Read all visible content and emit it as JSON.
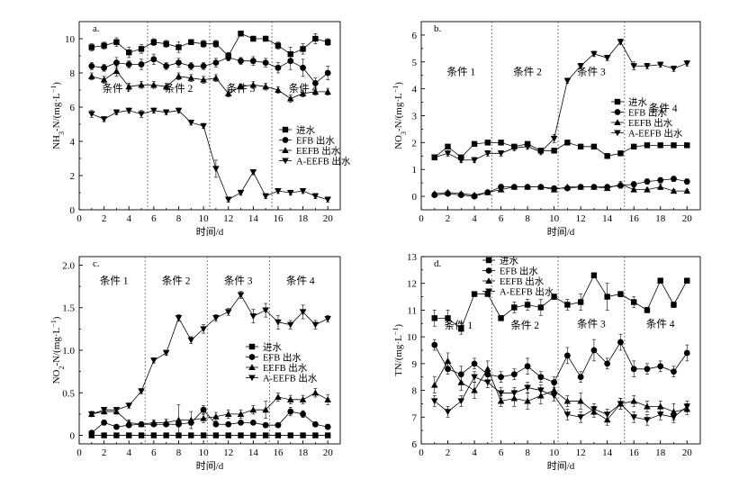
{
  "chart_data": [
    {
      "type": "line",
      "panel_label": "a.",
      "ylabel": "NH3-N/(mg·L⁻¹)",
      "ylabel_parts": [
        "NH",
        "3",
        "-N/(mg·L",
        "−1",
        ")"
      ],
      "xlabel": "时间/d",
      "xlim": [
        0,
        21
      ],
      "ylim": [
        0,
        11
      ],
      "xticks": [
        0,
        2,
        4,
        6,
        8,
        10,
        12,
        14,
        16,
        18,
        20
      ],
      "yticks": [
        0,
        2,
        4,
        6,
        8,
        10
      ],
      "dividers": [
        5.5,
        10.5,
        15.5
      ],
      "conditions": [
        {
          "label": "条件 1",
          "x": 3.0,
          "y": 6.9
        },
        {
          "label": "条件 2",
          "x": 8.0,
          "y": 6.9
        },
        {
          "label": "条件 3",
          "x": 13.0,
          "y": 6.9
        },
        {
          "label": "条件 4",
          "x": 18.0,
          "y": 6.9
        }
      ],
      "legend_position": "right-middle",
      "x": [
        1,
        2,
        3,
        4,
        5,
        6,
        7,
        8,
        9,
        10,
        11,
        12,
        13,
        14,
        15,
        16,
        17,
        18,
        19,
        20
      ],
      "series": [
        {
          "name": "进水",
          "marker": "square",
          "values": [
            9.5,
            9.6,
            9.8,
            9.2,
            9.4,
            9.8,
            9.7,
            9.5,
            9.8,
            9.7,
            9.7,
            9.0,
            10.3,
            10.0,
            10.0,
            9.6,
            9.1,
            9.4,
            10.0,
            9.8
          ],
          "errors": [
            0.2,
            0.2,
            0.25,
            0.3,
            0.25,
            0.2,
            0.2,
            0.3,
            0.15,
            0.2,
            0.2,
            0.2,
            0.15,
            0.15,
            0.15,
            0.2,
            0.4,
            0.3,
            0.3,
            0.2
          ]
        },
        {
          "name": "EFB 出水",
          "marker": "circle",
          "values": [
            8.4,
            8.3,
            8.6,
            8.5,
            8.5,
            8.8,
            8.4,
            8.6,
            8.4,
            8.4,
            8.6,
            8.9,
            8.7,
            8.7,
            8.6,
            8.3,
            8.7,
            8.3,
            7.4,
            8.0
          ],
          "errors": [
            0.2,
            0.2,
            0.3,
            0.2,
            0.3,
            0.3,
            0.2,
            0.25,
            0.2,
            0.2,
            0.25,
            0.2,
            0.2,
            0.25,
            0.25,
            0.3,
            0.5,
            0.5,
            0.3,
            0.4
          ]
        },
        {
          "name": "EEFB 出水",
          "marker": "triangle-up",
          "values": [
            7.8,
            7.6,
            8.1,
            7.2,
            7.3,
            7.3,
            7.2,
            7.8,
            7.7,
            7.6,
            7.7,
            6.8,
            7.2,
            7.3,
            7.2,
            7.0,
            6.5,
            6.8,
            6.9,
            6.9
          ],
          "errors": [
            0.2,
            0.2,
            0.3,
            0.2,
            0.2,
            0.2,
            0.2,
            0.2,
            0.2,
            0.2,
            0.2,
            0.2,
            0.15,
            0.2,
            0.2,
            0.2,
            0.2,
            0.2,
            0.2,
            0.2
          ]
        },
        {
          "name": "A-EEFB 出水",
          "marker": "triangle-down",
          "values": [
            5.6,
            5.3,
            5.7,
            5.8,
            5.6,
            5.8,
            5.7,
            5.8,
            5.1,
            4.9,
            2.4,
            0.6,
            1.0,
            2.2,
            0.8,
            1.1,
            1.0,
            1.1,
            0.8,
            0.6
          ],
          "errors": [
            0.2,
            0.15,
            0.15,
            0.15,
            0.2,
            0.15,
            0.15,
            0.15,
            0.15,
            0.15,
            0.5,
            0.15,
            0.15,
            0.15,
            0.15,
            0.15,
            0.15,
            0.15,
            0.15,
            0.15
          ]
        }
      ]
    },
    {
      "type": "line",
      "panel_label": "b.",
      "ylabel": "NO3-N/(mg·L⁻¹)",
      "ylabel_parts": [
        "NO",
        "3",
        "-N/(mg·L",
        "−1",
        ")"
      ],
      "xlabel": "时间/d",
      "xlim": [
        0,
        21
      ],
      "ylim": [
        -0.5,
        6.5
      ],
      "xticks": [
        0,
        2,
        4,
        6,
        8,
        10,
        12,
        14,
        16,
        18,
        20
      ],
      "yticks": [
        0,
        1,
        2,
        3,
        4,
        5,
        6
      ],
      "dividers": [
        5.3,
        10.3,
        15.3
      ],
      "conditions": [
        {
          "label": "条件 1",
          "x": 3.0,
          "y": 4.5
        },
        {
          "label": "条件 2",
          "x": 8.0,
          "y": 4.5
        },
        {
          "label": "条件 3",
          "x": 12.8,
          "y": 4.5
        },
        {
          "label": "条件 4",
          "x": 18.2,
          "y": 3.15
        }
      ],
      "legend_position": "right-middle",
      "x": [
        1,
        2,
        3,
        4,
        5,
        6,
        7,
        8,
        9,
        10,
        11,
        12,
        13,
        14,
        15,
        16,
        17,
        18,
        19,
        20
      ],
      "series": [
        {
          "name": "进水",
          "marker": "square",
          "values": [
            1.45,
            1.85,
            1.45,
            1.95,
            2.0,
            2.0,
            1.85,
            1.95,
            1.7,
            1.7,
            2.0,
            1.85,
            1.85,
            1.5,
            1.6,
            1.85,
            1.9,
            1.9,
            1.9,
            1.9
          ],
          "errors": [
            0.05,
            0.05,
            0.05,
            0.05,
            0.05,
            0.05,
            0.05,
            0.05,
            0.05,
            0.05,
            0.05,
            0.05,
            0.05,
            0.05,
            0.05,
            0.05,
            0.05,
            0.05,
            0.05,
            0.05
          ]
        },
        {
          "name": "EFB 出水",
          "marker": "circle",
          "values": [
            0.05,
            0.1,
            0.05,
            0.0,
            0.15,
            0.35,
            0.35,
            0.35,
            0.35,
            0.3,
            0.3,
            0.35,
            0.35,
            0.35,
            0.4,
            0.45,
            0.55,
            0.6,
            0.65,
            0.55
          ],
          "errors": [
            0.05,
            0.05,
            0.05,
            0.05,
            0.05,
            0.1,
            0.05,
            0.05,
            0.05,
            0.05,
            0.05,
            0.05,
            0.05,
            0.05,
            0.1,
            0.1,
            0.1,
            0.1,
            0.1,
            0.1
          ]
        },
        {
          "name": "EEFB 出水",
          "marker": "triangle-up",
          "values": [
            0.1,
            0.15,
            0.1,
            0.05,
            0.15,
            0.25,
            0.35,
            0.35,
            0.35,
            0.25,
            0.35,
            0.35,
            0.35,
            0.3,
            0.45,
            0.25,
            0.25,
            0.35,
            0.2,
            0.2
          ],
          "errors": [
            0.05,
            0.05,
            0.05,
            0.05,
            0.05,
            0.05,
            0.05,
            0.05,
            0.05,
            0.05,
            0.05,
            0.05,
            0.05,
            0.05,
            0.1,
            0.05,
            0.05,
            0.1,
            0.05,
            0.05
          ]
        },
        {
          "name": "A-EEFB 出水",
          "marker": "triangle-down",
          "values": [
            1.45,
            1.6,
            1.35,
            1.35,
            1.6,
            1.6,
            1.8,
            1.85,
            1.65,
            2.15,
            4.3,
            4.85,
            5.3,
            5.15,
            5.75,
            4.85,
            4.85,
            4.9,
            4.75,
            4.95
          ],
          "errors": [
            0.1,
            0.1,
            0.1,
            0.1,
            0.1,
            0.1,
            0.1,
            0.1,
            0.1,
            0.15,
            0.1,
            0.1,
            0.1,
            0.1,
            0.1,
            0.15,
            0.1,
            0.1,
            0.1,
            0.1
          ]
        }
      ]
    },
    {
      "type": "line",
      "panel_label": "c.",
      "ylabel": "NO2-N/(mg·L⁻¹)",
      "ylabel_parts": [
        "NO",
        "2",
        "-N/(mg·L",
        "−1",
        ")"
      ],
      "xlabel": "时间/d",
      "xlim": [
        0,
        21
      ],
      "ylim": [
        -0.1,
        2.1
      ],
      "xticks": [
        0,
        2,
        4,
        6,
        8,
        10,
        12,
        14,
        16,
        18,
        20
      ],
      "yticks": [
        0,
        0.5,
        1.0,
        1.5,
        2.0
      ],
      "ytick_labels": [
        "0",
        "0.5",
        "1.0",
        "1.5",
        "2.0"
      ],
      "dividers": [
        5.3,
        10.3,
        15.3
      ],
      "conditions": [
        {
          "label": "条件 1",
          "x": 2.8,
          "y": 1.78
        },
        {
          "label": "条件 2",
          "x": 7.8,
          "y": 1.78
        },
        {
          "label": "条件 3",
          "x": 12.8,
          "y": 1.78
        },
        {
          "label": "条件 4",
          "x": 17.8,
          "y": 1.78
        }
      ],
      "legend_position": "right-lower",
      "x": [
        1,
        2,
        3,
        4,
        5,
        6,
        7,
        8,
        9,
        10,
        11,
        12,
        13,
        14,
        15,
        16,
        17,
        18,
        19,
        20
      ],
      "series": [
        {
          "name": "进水",
          "marker": "square",
          "values": [
            0.0,
            0.0,
            0.0,
            0.0,
            0.0,
            0.0,
            0.0,
            0.0,
            0.0,
            0.0,
            0.0,
            0.0,
            0.0,
            0.0,
            0.0,
            0.0,
            0.0,
            0.0,
            0.0,
            0.0
          ],
          "errors": [
            0.01,
            0.01,
            0.01,
            0.01,
            0.01,
            0.01,
            0.01,
            0.01,
            0.01,
            0.01,
            0.01,
            0.01,
            0.01,
            0.01,
            0.01,
            0.01,
            0.01,
            0.01,
            0.01,
            0.01
          ]
        },
        {
          "name": "EFB 出水",
          "marker": "circle",
          "values": [
            0.03,
            0.15,
            0.1,
            0.12,
            0.13,
            0.13,
            0.13,
            0.13,
            0.15,
            0.3,
            0.13,
            0.13,
            0.15,
            0.15,
            0.12,
            0.12,
            0.28,
            0.25,
            0.13,
            0.1
          ],
          "errors": [
            0.02,
            0.03,
            0.02,
            0.02,
            0.02,
            0.02,
            0.02,
            0.02,
            0.03,
            0.05,
            0.02,
            0.02,
            0.02,
            0.02,
            0.02,
            0.02,
            0.05,
            0.04,
            0.03,
            0.03
          ]
        },
        {
          "name": "EEFB 出水",
          "marker": "triangle-up",
          "values": [
            0.25,
            0.28,
            0.28,
            0.15,
            0.13,
            0.15,
            0.15,
            0.18,
            0.18,
            0.2,
            0.22,
            0.25,
            0.25,
            0.3,
            0.3,
            0.45,
            0.42,
            0.42,
            0.5,
            0.42
          ],
          "errors": [
            0.03,
            0.03,
            0.03,
            0.03,
            0.03,
            0.03,
            0.04,
            0.18,
            0.1,
            0.05,
            0.05,
            0.05,
            0.05,
            0.05,
            0.1,
            0.05,
            0.05,
            0.05,
            0.05,
            0.06
          ]
        },
        {
          "name": "A-EEFB 出水",
          "marker": "triangle-down",
          "values": [
            0.25,
            0.3,
            0.3,
            0.35,
            0.52,
            0.88,
            0.97,
            1.38,
            1.12,
            1.25,
            1.38,
            1.45,
            1.65,
            1.4,
            1.47,
            1.33,
            1.3,
            1.45,
            1.3,
            1.37
          ],
          "errors": [
            0.03,
            0.03,
            0.03,
            0.03,
            0.03,
            0.03,
            0.03,
            0.04,
            0.04,
            0.05,
            0.04,
            0.04,
            0.04,
            0.08,
            0.08,
            0.08,
            0.05,
            0.08,
            0.05,
            0.04
          ]
        }
      ]
    },
    {
      "type": "line",
      "panel_label": "d.",
      "ylabel": "TN/(mg·L⁻¹)",
      "ylabel_parts": [
        "TN/(mg·L",
        "",
        "",
        "−1",
        ")"
      ],
      "xlabel": "时间/d",
      "xlim": [
        0,
        21
      ],
      "ylim": [
        6,
        13
      ],
      "xticks": [
        0,
        2,
        4,
        6,
        8,
        10,
        12,
        14,
        16,
        18,
        20
      ],
      "yticks": [
        6,
        7,
        8,
        9,
        10,
        11,
        12,
        13
      ],
      "dividers": [
        5.3,
        10.3,
        15.3
      ],
      "conditions": [
        {
          "label": "条件 1",
          "x": 2.8,
          "y": 10.3
        },
        {
          "label": "条件 2",
          "x": 7.8,
          "y": 10.3
        },
        {
          "label": "条件 3",
          "x": 12.8,
          "y": 10.35
        },
        {
          "label": "条件 4",
          "x": 18.0,
          "y": 10.35
        }
      ],
      "legend_position": "top-left",
      "x": [
        1,
        2,
        3,
        4,
        5,
        6,
        7,
        8,
        9,
        10,
        11,
        12,
        13,
        14,
        15,
        16,
        17,
        18,
        19,
        20
      ],
      "series": [
        {
          "name": "进水",
          "marker": "square",
          "values": [
            10.7,
            10.7,
            10.3,
            11.6,
            11.6,
            10.7,
            11.1,
            11.2,
            11.1,
            11.5,
            11.2,
            11.3,
            12.3,
            11.5,
            11.6,
            11.3,
            11.0,
            12.1,
            11.2,
            12.1
          ],
          "errors": [
            0.3,
            0.3,
            0.2,
            0.05,
            0.05,
            0.1,
            0.2,
            0.2,
            0.3,
            0.1,
            0.2,
            0.3,
            0.1,
            0.5,
            0.1,
            0.2,
            0.1,
            0.1,
            0.1,
            0.1
          ]
        },
        {
          "name": "EFB 出水",
          "marker": "circle",
          "values": [
            9.7,
            8.8,
            8.6,
            9.0,
            8.6,
            8.5,
            8.6,
            8.9,
            8.5,
            8.3,
            9.3,
            8.5,
            9.5,
            9.0,
            9.8,
            8.8,
            8.8,
            8.9,
            8.7,
            9.4
          ],
          "errors": [
            0.2,
            0.2,
            0.3,
            0.2,
            0.2,
            0.2,
            0.2,
            0.3,
            0.2,
            0.2,
            0.3,
            0.2,
            0.4,
            0.2,
            0.3,
            0.3,
            0.2,
            0.2,
            0.2,
            0.3
          ]
        },
        {
          "name": "EEFB 出水",
          "marker": "triangle-up",
          "values": [
            8.2,
            9.1,
            8.3,
            8.0,
            8.8,
            7.6,
            7.7,
            7.6,
            7.8,
            8.0,
            7.6,
            7.6,
            7.2,
            6.9,
            7.5,
            7.6,
            7.4,
            7.4,
            7.2,
            7.3
          ],
          "errors": [
            0.3,
            0.3,
            0.3,
            0.3,
            0.3,
            0.2,
            0.3,
            0.3,
            0.3,
            0.2,
            0.2,
            0.3,
            0.2,
            0.2,
            0.2,
            0.2,
            0.2,
            0.2,
            0.3,
            0.2
          ]
        },
        {
          "name": "A-EEFB 出水",
          "marker": "triangle-down",
          "values": [
            7.6,
            7.2,
            7.6,
            8.5,
            8.3,
            7.9,
            7.9,
            8.1,
            8.0,
            7.8,
            7.1,
            7.0,
            7.3,
            7.1,
            7.5,
            7.0,
            6.9,
            7.1,
            7.0,
            7.4
          ],
          "errors": [
            0.2,
            0.2,
            0.2,
            0.2,
            0.2,
            0.2,
            0.2,
            0.2,
            0.2,
            0.2,
            0.2,
            0.2,
            0.2,
            0.2,
            0.2,
            0.2,
            0.2,
            0.2,
            0.2,
            0.2
          ]
        }
      ]
    }
  ]
}
